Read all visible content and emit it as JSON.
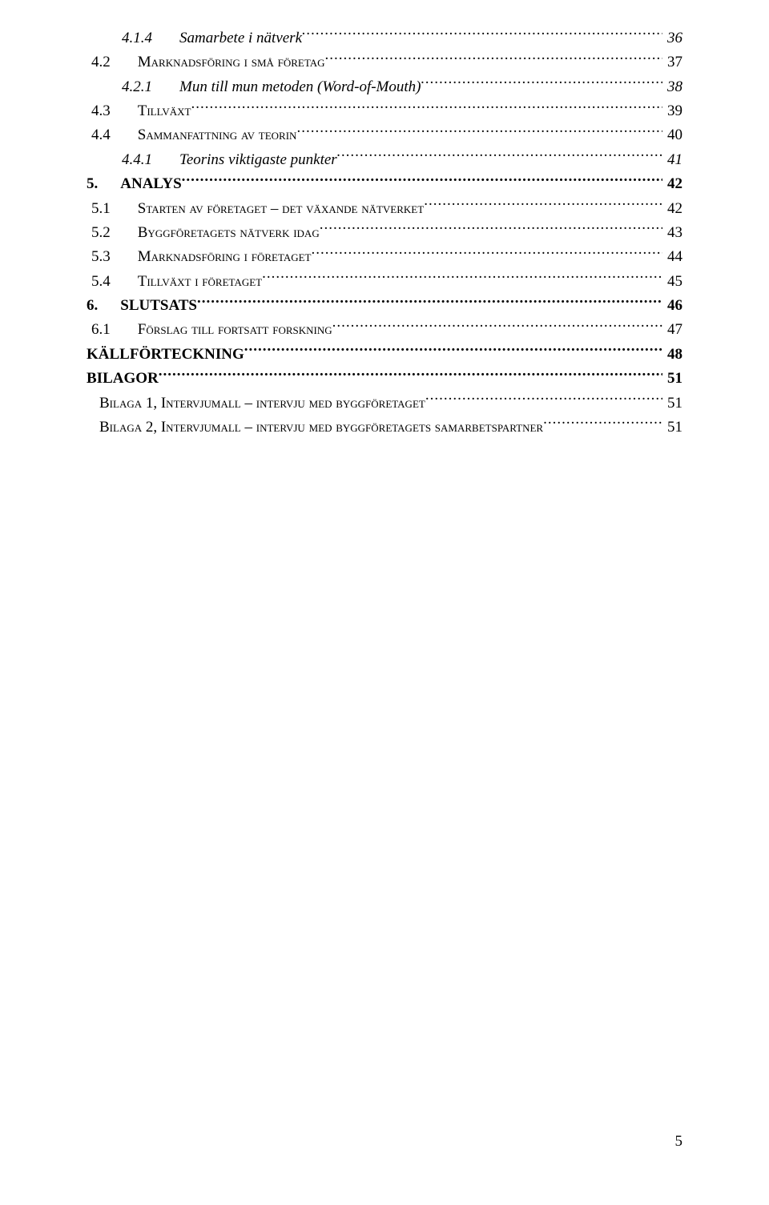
{
  "page_number": "5",
  "entries": [
    {
      "cls": "lvl3",
      "num": "4.1.4",
      "title": "Samarbete i nätverk",
      "pg": "36"
    },
    {
      "cls": "lvl2",
      "num": "4.2",
      "title": "Marknadsföring i små företag",
      "pg": "37"
    },
    {
      "cls": "lvl3",
      "num": "4.2.1",
      "title": "Mun till mun metoden (Word-of-Mouth)",
      "pg": "38"
    },
    {
      "cls": "lvl2",
      "num": "4.3",
      "title": "Tillväxt",
      "pg": "39"
    },
    {
      "cls": "lvl2",
      "num": "4.4",
      "title": "Sammanfattning av teorin",
      "pg": "40"
    },
    {
      "cls": "lvl3",
      "num": "4.4.1",
      "title": "Teorins viktigaste punkter",
      "pg": "41"
    },
    {
      "cls": "lvl1",
      "num": "5.",
      "title": "ANALYS",
      "pg": "42"
    },
    {
      "cls": "lvl2",
      "num": "5.1",
      "title": "Starten av företaget – det växande nätverket",
      "pg": "42"
    },
    {
      "cls": "lvl2",
      "num": "5.2",
      "title": "Byggföretagets nätverk idag",
      "pg": "43"
    },
    {
      "cls": "lvl2",
      "num": "5.3",
      "title": "Marknadsföring i företaget",
      "pg": "44"
    },
    {
      "cls": "lvl2",
      "num": "5.4",
      "title": "Tillväxt i företaget",
      "pg": "45"
    },
    {
      "cls": "lvl1",
      "num": "6.",
      "title": "SLUTSATS",
      "pg": "46"
    },
    {
      "cls": "lvl2",
      "num": "6.1",
      "title": "Förslag till fortsatt forskning",
      "pg": "47"
    },
    {
      "cls": "lvl0",
      "num": "",
      "title": "KÄLLFÖRTECKNING",
      "pg": "48"
    },
    {
      "cls": "lvl0",
      "num": "",
      "title": "BILAGOR",
      "pg": "51"
    },
    {
      "cls": "bil",
      "num": "",
      "title": "Bilaga 1, Intervjumall – intervju med byggföretaget",
      "pg": "51"
    },
    {
      "cls": "bil",
      "num": "",
      "title": "Bilaga 2, Intervjumall – intervju med byggföretagets samarbetspartner",
      "pg": "51"
    }
  ]
}
